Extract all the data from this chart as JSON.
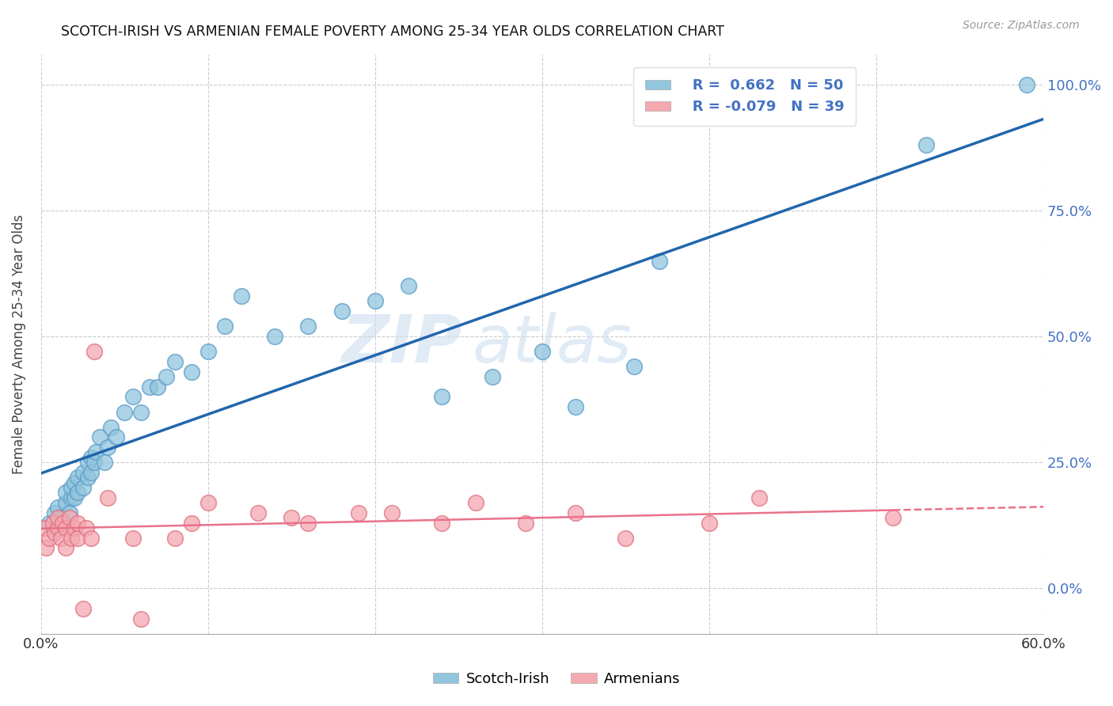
{
  "title": "SCOTCH-IRISH VS ARMENIAN FEMALE POVERTY AMONG 25-34 YEAR OLDS CORRELATION CHART",
  "source": "Source: ZipAtlas.com",
  "ylabel": "Female Poverty Among 25-34 Year Olds",
  "ytick_vals": [
    0.0,
    0.25,
    0.5,
    0.75,
    1.0
  ],
  "ytick_labels": [
    "0.0%",
    "25.0%",
    "50.0%",
    "75.0%",
    "100.0%"
  ],
  "xmin": 0.0,
  "xmax": 0.6,
  "ymin": -0.09,
  "ymax": 1.06,
  "legend_labels": [
    "Scotch-Irish",
    "Armenians"
  ],
  "scotch_irish_color": "#92c5de",
  "scotch_irish_edge": "#5b9cc7",
  "armenian_color": "#f4a8b0",
  "armenian_edge": "#e07080",
  "trendline_scotch_color": "#2166ac",
  "trendline_armenian_color": "#e8728a",
  "watermark_zip": "ZIP",
  "watermark_atlas": "atlas",
  "scotch_irish_x": [
    0.005,
    0.008,
    0.01,
    0.012,
    0.015,
    0.015,
    0.017,
    0.018,
    0.018,
    0.02,
    0.02,
    0.022,
    0.022,
    0.025,
    0.025,
    0.028,
    0.028,
    0.03,
    0.03,
    0.032,
    0.033,
    0.035,
    0.038,
    0.04,
    0.042,
    0.045,
    0.05,
    0.055,
    0.06,
    0.065,
    0.07,
    0.075,
    0.08,
    0.09,
    0.1,
    0.11,
    0.12,
    0.14,
    0.16,
    0.18,
    0.2,
    0.22,
    0.24,
    0.27,
    0.3,
    0.32,
    0.355,
    0.37,
    0.53,
    0.59
  ],
  "scotch_irish_y": [
    0.13,
    0.15,
    0.16,
    0.14,
    0.17,
    0.19,
    0.15,
    0.18,
    0.2,
    0.18,
    0.21,
    0.19,
    0.22,
    0.2,
    0.23,
    0.22,
    0.25,
    0.23,
    0.26,
    0.25,
    0.27,
    0.3,
    0.25,
    0.28,
    0.32,
    0.3,
    0.35,
    0.38,
    0.35,
    0.4,
    0.4,
    0.42,
    0.45,
    0.43,
    0.47,
    0.52,
    0.58,
    0.5,
    0.52,
    0.55,
    0.57,
    0.6,
    0.38,
    0.42,
    0.47,
    0.36,
    0.44,
    0.65,
    0.88,
    1.0
  ],
  "armenian_x": [
    0.002,
    0.003,
    0.005,
    0.007,
    0.008,
    0.01,
    0.01,
    0.012,
    0.013,
    0.015,
    0.015,
    0.017,
    0.018,
    0.02,
    0.022,
    0.022,
    0.025,
    0.027,
    0.03,
    0.032,
    0.04,
    0.055,
    0.06,
    0.08,
    0.09,
    0.1,
    0.13,
    0.15,
    0.16,
    0.19,
    0.21,
    0.24,
    0.26,
    0.29,
    0.32,
    0.35,
    0.4,
    0.43,
    0.51
  ],
  "armenian_y": [
    0.12,
    0.08,
    0.1,
    0.13,
    0.11,
    0.12,
    0.14,
    0.1,
    0.13,
    0.12,
    0.08,
    0.14,
    0.1,
    0.12,
    0.1,
    0.13,
    -0.04,
    0.12,
    0.1,
    0.47,
    0.18,
    0.1,
    -0.06,
    0.1,
    0.13,
    0.17,
    0.15,
    0.14,
    0.13,
    0.15,
    0.15,
    0.13,
    0.17,
    0.13,
    0.15,
    0.1,
    0.13,
    0.18,
    0.14
  ]
}
